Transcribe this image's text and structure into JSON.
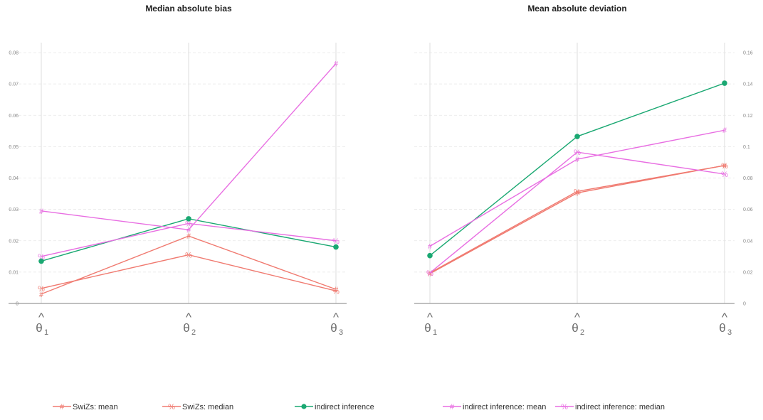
{
  "chart_data": [
    {
      "type": "line",
      "title": "Median absolute bias",
      "categories": [
        "θ1",
        "θ2",
        "θ3"
      ],
      "category_labels": [
        {
          "base": "θ",
          "sub": "1",
          "hat": "^"
        },
        {
          "base": "θ",
          "sub": "2",
          "hat": "^"
        },
        {
          "base": "θ",
          "sub": "3",
          "hat": "^"
        }
      ],
      "ylim": [
        0,
        0.08
      ],
      "y_axis_side": "left",
      "yticks": [
        0,
        0.01,
        0.02,
        0.03,
        0.04,
        0.05,
        0.06,
        0.07,
        0.08
      ],
      "ytick_labels": [
        "0",
        "0.01",
        "0.02",
        "0.03",
        "0.04",
        "0.05",
        "0.06",
        "0.07",
        "0.08"
      ],
      "grid": true,
      "series": [
        {
          "name": "SwiZs: mean",
          "values": [
            0.003,
            0.0215,
            0.0045
          ]
        },
        {
          "name": "SwiZs: median",
          "values": [
            0.0048,
            0.0155,
            0.004
          ]
        },
        {
          "name": "indirect inference",
          "values": [
            0.0135,
            0.027,
            0.018
          ]
        },
        {
          "name": "indirect inference: mean",
          "values": [
            0.0295,
            0.0235,
            0.0765
          ]
        },
        {
          "name": "indirect inference: median",
          "values": [
            0.015,
            0.0255,
            0.02
          ]
        }
      ]
    },
    {
      "type": "line",
      "title": "Mean absolute deviation",
      "categories": [
        "θ1",
        "θ2",
        "θ3"
      ],
      "category_labels": [
        {
          "base": "θ",
          "sub": "1",
          "hat": "^"
        },
        {
          "base": "θ",
          "sub": "2",
          "hat": "^"
        },
        {
          "base": "θ",
          "sub": "3",
          "hat": "^"
        }
      ],
      "ylim": [
        0,
        0.16
      ],
      "y_axis_side": "right",
      "yticks": [
        0,
        0.02,
        0.04,
        0.06,
        0.08,
        0.1,
        0.12,
        0.14,
        0.16
      ],
      "ytick_labels": [
        "0",
        "0.02",
        "0.04",
        "0.06",
        "0.08",
        "0.1",
        "0.12",
        "0.14",
        "0.16"
      ],
      "grid": true,
      "series": [
        {
          "name": "SwiZs: mean",
          "values": [
            0.019,
            0.0705,
            0.088
          ]
        },
        {
          "name": "SwiZs: median",
          "values": [
            0.0195,
            0.0715,
            0.088
          ]
        },
        {
          "name": "indirect inference",
          "values": [
            0.0305,
            0.1065,
            0.1405
          ]
        },
        {
          "name": "indirect inference: mean",
          "values": [
            0.0365,
            0.092,
            0.1105
          ]
        },
        {
          "name": "indirect inference: median",
          "values": [
            0.0195,
            0.0965,
            0.0825
          ]
        }
      ]
    }
  ],
  "legend": {
    "placement": "bottom",
    "items": [
      {
        "label": "SwiZs: mean",
        "symbol": "#",
        "color": "#f07a70"
      },
      {
        "label": "SwiZs: median",
        "symbol": "%",
        "color": "#f07a70"
      },
      {
        "label": "indirect inference",
        "symbol": "dot",
        "color": "#1aa872"
      },
      {
        "label": "indirect inference: mean",
        "symbol": "#",
        "color": "#e86ee2"
      },
      {
        "label": "indirect inference: median",
        "symbol": "%",
        "color": "#e86ee2"
      }
    ]
  },
  "series_style": [
    {
      "symbol": "#",
      "color": "#f07a70"
    },
    {
      "symbol": "%",
      "color": "#f07a70"
    },
    {
      "symbol": "dot",
      "color": "#1aa872"
    },
    {
      "symbol": "#",
      "color": "#e86ee2"
    },
    {
      "symbol": "%",
      "color": "#e86ee2"
    }
  ]
}
